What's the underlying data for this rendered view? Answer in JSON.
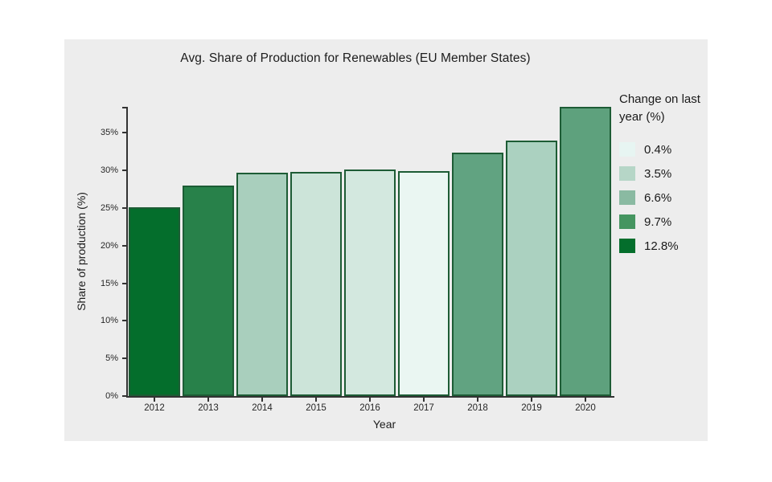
{
  "page": {
    "background": "#ffffff",
    "figure_background": "#ededed",
    "axis_color": "#333333",
    "text_color": "#1c1c1c"
  },
  "chart_data": {
    "type": "bar",
    "title": "Avg. Share of Production for Renewables (EU Member States)",
    "xlabel": "Year",
    "ylabel": "Share of production (%)",
    "categories": [
      "2012",
      "2013",
      "2014",
      "2015",
      "2016",
      "2017",
      "2018",
      "2019",
      "2020"
    ],
    "values": [
      25.1,
      28.0,
      29.7,
      29.8,
      30.1,
      29.9,
      32.4,
      34.0,
      38.4
    ],
    "bar_colors": [
      "#046e2c",
      "#28814a",
      "#a9cfbd",
      "#cce4d9",
      "#d3e8df",
      "#eaf6f2",
      "#61a381",
      "#abd1c0",
      "#5ea17d"
    ],
    "bar_border_color": "#1d5c35",
    "ylim": [
      0,
      38.44
    ],
    "yticks": [
      {
        "value": 0,
        "label": "0%"
      },
      {
        "value": 5,
        "label": "5%"
      },
      {
        "value": 10,
        "label": "10%"
      },
      {
        "value": 15,
        "label": "15%"
      },
      {
        "value": 20,
        "label": "20%"
      },
      {
        "value": 25,
        "label": "25%"
      },
      {
        "value": 30,
        "label": "30%"
      },
      {
        "value": 35,
        "label": "35%"
      }
    ],
    "grid": "off",
    "legend": {
      "title": "Change on last year (%)",
      "position": "right",
      "entries": [
        {
          "label": "0.4%",
          "color": "#e7f5f2"
        },
        {
          "label": "3.5%",
          "color": "#b6d6c7"
        },
        {
          "label": "6.6%",
          "color": "#8abaa2"
        },
        {
          "label": "9.7%",
          "color": "#459560"
        },
        {
          "label": "12.8%",
          "color": "#046e2c"
        }
      ]
    }
  }
}
